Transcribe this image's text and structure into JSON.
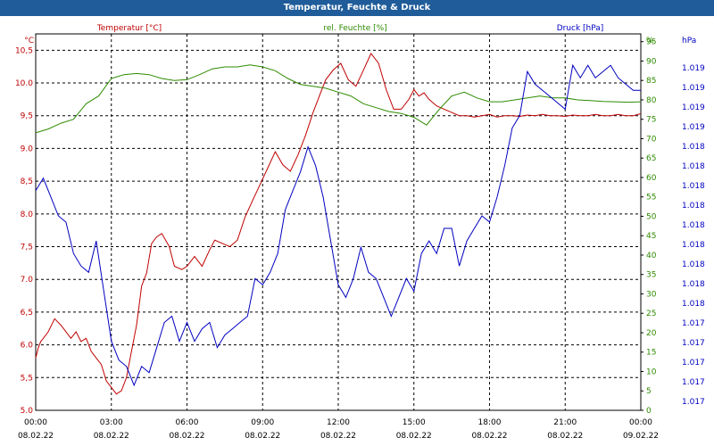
{
  "window": {
    "title": "Temperatur, Feuchte & Druck"
  },
  "chart_data": {
    "type": "line",
    "title": "Temperatur, Feuchte & Druck",
    "x_range": [
      "08.02.22 00:00",
      "09.02.22 00:00"
    ],
    "x_ticks": [
      {
        "time": "00:00",
        "date": "08.02.22"
      },
      {
        "time": "03:00",
        "date": "08.02.22"
      },
      {
        "time": "06:00",
        "date": "08.02.22"
      },
      {
        "time": "09:00",
        "date": "08.02.22"
      },
      {
        "time": "12:00",
        "date": "08.02.22"
      },
      {
        "time": "15:00",
        "date": "08.02.22"
      },
      {
        "time": "18:00",
        "date": "08.02.22"
      },
      {
        "time": "21:00",
        "date": "08.02.22"
      },
      {
        "time": "00:00",
        "date": "09.02.22"
      }
    ],
    "grid": true,
    "axes": {
      "temperature": {
        "label": "Temperatur [°C]",
        "unit": "°C",
        "color": "#c00000",
        "range": [
          5.0,
          10.75
        ],
        "ticks": [
          "5.0",
          "5,5",
          "6.0",
          "6,5",
          "7.0",
          "7,5",
          "8.0",
          "8,5",
          "9.0",
          "9,5",
          "10.0",
          "10,5"
        ]
      },
      "humidity": {
        "label": "rel. Feuchte [%]",
        "unit": "%",
        "color": "#2e8b00",
        "range": [
          0,
          97
        ],
        "ticks": [
          "0",
          "5",
          "10",
          "15",
          "20",
          "25",
          "30",
          "35",
          "40",
          "45",
          "50",
          "55",
          "60",
          "65",
          "70",
          "75",
          "80",
          "85",
          "90",
          "95"
        ]
      },
      "pressure": {
        "label": "Druck [hPa]",
        "unit": "hPa",
        "color": "#0000c0",
        "range": [
          1016.6,
          1019.6
        ],
        "ticks": [
          "1.017",
          "1.017",
          "1.017",
          "1.017",
          "1.017",
          "1.018",
          "1.018",
          "1.018",
          "1.018",
          "1.018",
          "1.018",
          "1.018",
          "1.018",
          "1.018",
          "1.019",
          "1.019",
          "1.019",
          "1.019"
        ]
      }
    },
    "series": [
      {
        "name": "Temperatur [°C]",
        "axis": "temperature",
        "color": "#c00000",
        "x": [
          0,
          0.1,
          0.2,
          0.3,
          0.5,
          0.75,
          1.0,
          1.2,
          1.4,
          1.6,
          1.8,
          2.0,
          2.2,
          2.4,
          2.6,
          2.8,
          3.0,
          3.2,
          3.4,
          3.6,
          3.8,
          4.0,
          4.2,
          4.4,
          4.6,
          4.8,
          5.0,
          5.3,
          5.5,
          5.8,
          6.0,
          6.3,
          6.6,
          6.9,
          7.1,
          7.4,
          7.7,
          8.0,
          8.3,
          8.6,
          8.9,
          9.2,
          9.5,
          9.8,
          10.1,
          10.4,
          10.7,
          11.0,
          11.3,
          11.5,
          11.8,
          12.1,
          12.4,
          12.7,
          13.0,
          13.3,
          13.6,
          13.9,
          14.2,
          14.5,
          14.8,
          15.0,
          15.2,
          15.4,
          15.6,
          15.9,
          16.2,
          16.5,
          16.8,
          17.1,
          17.4,
          17.7,
          18.0,
          18.3,
          18.6,
          18.9,
          19.2,
          19.5,
          19.8,
          20.1,
          20.4,
          20.7,
          21.0,
          21.3,
          21.6,
          21.9,
          22.2,
          22.5,
          22.8,
          23.1,
          23.4,
          23.7,
          24.0
        ],
        "y": [
          5.8,
          5.95,
          6.05,
          6.1,
          6.2,
          6.4,
          6.3,
          6.2,
          6.1,
          6.2,
          6.05,
          6.1,
          5.9,
          5.8,
          5.7,
          5.45,
          5.35,
          5.25,
          5.3,
          5.5,
          5.9,
          6.3,
          6.9,
          7.1,
          7.55,
          7.65,
          7.7,
          7.5,
          7.2,
          7.15,
          7.2,
          7.35,
          7.2,
          7.45,
          7.6,
          7.55,
          7.5,
          7.6,
          7.95,
          8.2,
          8.45,
          8.7,
          8.95,
          8.75,
          8.65,
          8.9,
          9.2,
          9.55,
          9.85,
          10.05,
          10.2,
          10.3,
          10.05,
          9.95,
          10.2,
          10.45,
          10.3,
          9.9,
          9.6,
          9.6,
          9.75,
          9.9,
          9.8,
          9.85,
          9.75,
          9.65,
          9.6,
          9.55,
          9.5,
          9.5,
          9.48,
          9.5,
          9.52,
          9.48,
          9.5,
          9.5,
          9.49,
          9.51,
          9.5,
          9.52,
          9.5,
          9.5,
          9.49,
          9.51,
          9.5,
          9.5,
          9.52,
          9.5,
          9.5,
          9.52,
          9.5,
          9.5,
          9.53
        ]
      },
      {
        "name": "rel. Feuchte [%]",
        "axis": "humidity",
        "color": "#2e8b00",
        "x": [
          0,
          0.5,
          1.0,
          1.5,
          2.0,
          2.5,
          3.0,
          3.5,
          4.0,
          4.5,
          5.0,
          5.5,
          6.0,
          6.5,
          7.0,
          7.5,
          8.0,
          8.5,
          9.0,
          9.5,
          10.0,
          10.5,
          11.0,
          11.5,
          12.0,
          12.5,
          13.0,
          13.5,
          14.0,
          14.5,
          15.0,
          15.5,
          16.0,
          16.5,
          17.0,
          17.5,
          18.0,
          18.5,
          19.0,
          19.5,
          20.0,
          20.5,
          21.0,
          21.5,
          22.0,
          22.5,
          23.0,
          23.5,
          24.0
        ],
        "y": [
          71.5,
          72.5,
          74,
          75,
          79,
          81,
          85.5,
          86.5,
          86.8,
          86.5,
          85.5,
          85,
          85.2,
          86.5,
          88,
          88.5,
          88.5,
          89,
          88.5,
          87.5,
          85.5,
          84,
          83.5,
          83,
          82,
          81,
          79,
          78,
          77,
          76.5,
          75.5,
          73.5,
          77.5,
          81,
          82,
          80.5,
          79.5,
          79.5,
          80,
          80.5,
          81,
          80.5,
          80.5,
          80,
          79.8,
          79.6,
          79.5,
          79.4,
          79.5
        ]
      },
      {
        "name": "Druck [hPa]",
        "axis": "pressure",
        "color": "#0000c0",
        "x": [
          0,
          0.3,
          0.6,
          0.9,
          1.2,
          1.5,
          1.8,
          2.1,
          2.4,
          2.7,
          3.0,
          3.3,
          3.6,
          3.9,
          4.2,
          4.5,
          4.8,
          5.1,
          5.4,
          5.7,
          6.0,
          6.3,
          6.6,
          6.9,
          7.2,
          7.5,
          7.8,
          8.1,
          8.4,
          8.7,
          9.0,
          9.3,
          9.6,
          9.9,
          10.2,
          10.5,
          10.8,
          11.1,
          11.4,
          11.7,
          12.0,
          12.3,
          12.6,
          12.9,
          13.2,
          13.5,
          13.8,
          14.1,
          14.4,
          14.7,
          15.0,
          15.3,
          15.6,
          15.9,
          16.2,
          16.5,
          16.8,
          17.1,
          17.4,
          17.7,
          18.0,
          18.3,
          18.6,
          18.9,
          19.2,
          19.5,
          19.8,
          20.1,
          20.4,
          20.7,
          21.0,
          21.3,
          21.6,
          21.9,
          22.2,
          22.5,
          22.8,
          23.1,
          23.4,
          23.7,
          24.0
        ],
        "y": [
          1018.35,
          1018.45,
          1018.3,
          1018.15,
          1018.1,
          1017.85,
          1017.75,
          1017.7,
          1017.95,
          1017.55,
          1017.15,
          1017.0,
          1016.95,
          1016.8,
          1016.95,
          1016.9,
          1017.1,
          1017.3,
          1017.35,
          1017.15,
          1017.3,
          1017.15,
          1017.25,
          1017.3,
          1017.1,
          1017.2,
          1017.25,
          1017.3,
          1017.35,
          1017.65,
          1017.6,
          1017.7,
          1017.85,
          1018.2,
          1018.35,
          1018.5,
          1018.7,
          1018.55,
          1018.3,
          1017.95,
          1017.6,
          1017.5,
          1017.65,
          1017.9,
          1017.7,
          1017.65,
          1017.5,
          1017.35,
          1017.5,
          1017.65,
          1017.55,
          1017.85,
          1017.95,
          1017.85,
          1018.05,
          1018.05,
          1017.75,
          1017.95,
          1018.05,
          1018.15,
          1018.1,
          1018.3,
          1018.55,
          1018.85,
          1018.95,
          1019.3,
          1019.2,
          1019.15,
          1019.1,
          1019.05,
          1019.0,
          1019.35,
          1019.25,
          1019.35,
          1019.25,
          1019.3,
          1019.35,
          1019.25,
          1019.2,
          1019.15,
          1019.15
        ]
      }
    ]
  }
}
